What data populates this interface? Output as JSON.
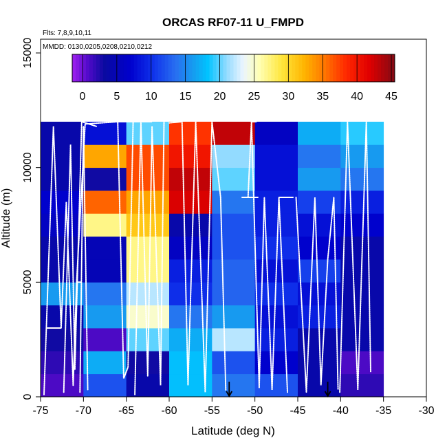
{
  "chart_data": {
    "type": "heatmap",
    "title": "ORCAS RF07-11 U_FMPD",
    "subtitle_flights": "Flts: 7,8,9,10,11",
    "subtitle_dates": "MMDD: 0130,0205,0208,0210,0212",
    "xlabel": "Latitude (deg N)",
    "ylabel": "Altitude (m)",
    "xlim": [
      -75,
      -30
    ],
    "ylim": [
      0,
      15600
    ],
    "x_ticks": [
      -75,
      -70,
      -65,
      -60,
      -55,
      -50,
      -45,
      -40,
      -35,
      -30
    ],
    "x_tick_labels": [
      "-75",
      "-70",
      "-65",
      "-60",
      "-55",
      "-50",
      "-45",
      "-40",
      "-35",
      "-30"
    ],
    "y_ticks": [
      0,
      5000,
      10000,
      15000
    ],
    "y_tick_labels": [
      "0",
      "5000",
      "10000",
      "15000"
    ],
    "colorbar": {
      "range": [
        -1.5,
        45.5
      ],
      "ticks": [
        0,
        5,
        10,
        15,
        20,
        25,
        30,
        35,
        40,
        45
      ],
      "tick_labels": [
        "0",
        "5",
        "10",
        "15",
        "20",
        "25",
        "30",
        "35",
        "40",
        "45"
      ]
    },
    "cell_width_deg": 5,
    "cell_height_m": 1000,
    "lat_bins": [
      -75,
      -70,
      -65,
      -60,
      -55,
      -50,
      -45,
      -40
    ],
    "alt_bins": [
      0,
      1000,
      2000,
      3000,
      4000,
      5000,
      6000,
      7000,
      8000,
      9000,
      10000,
      11000
    ],
    "values": [
      [
        1,
        12,
        4,
        18,
        14,
        12,
        4,
        2
      ],
      [
        2,
        17,
        3,
        18,
        12,
        7,
        4,
        1
      ],
      [
        3,
        1,
        20,
        17,
        22,
        9,
        4,
        4
      ],
      [
        4,
        16,
        25,
        14,
        16,
        8,
        9,
        4
      ],
      [
        16,
        14,
        22,
        10,
        13,
        10,
        8,
        4
      ],
      [
        4,
        5,
        27,
        9,
        13,
        8,
        11,
        4
      ],
      [
        4,
        5,
        27,
        6,
        12,
        10,
        7,
        4
      ],
      [
        6,
        27,
        31,
        4,
        12,
        9,
        8,
        7
      ],
      [
        7,
        36,
        33,
        42,
        14,
        9,
        11,
        9
      ],
      [
        4,
        3,
        37,
        43,
        20,
        8,
        16,
        14
      ],
      [
        4,
        33,
        37,
        40,
        21,
        8,
        14,
        16
      ],
      [
        4,
        8,
        20,
        38,
        43,
        6,
        17,
        19
      ]
    ],
    "markers": [
      {
        "lat": -53,
        "alt": 0,
        "label": "down-arrow"
      },
      {
        "lat": -41.5,
        "alt": 0,
        "label": "down-arrow"
      }
    ]
  }
}
